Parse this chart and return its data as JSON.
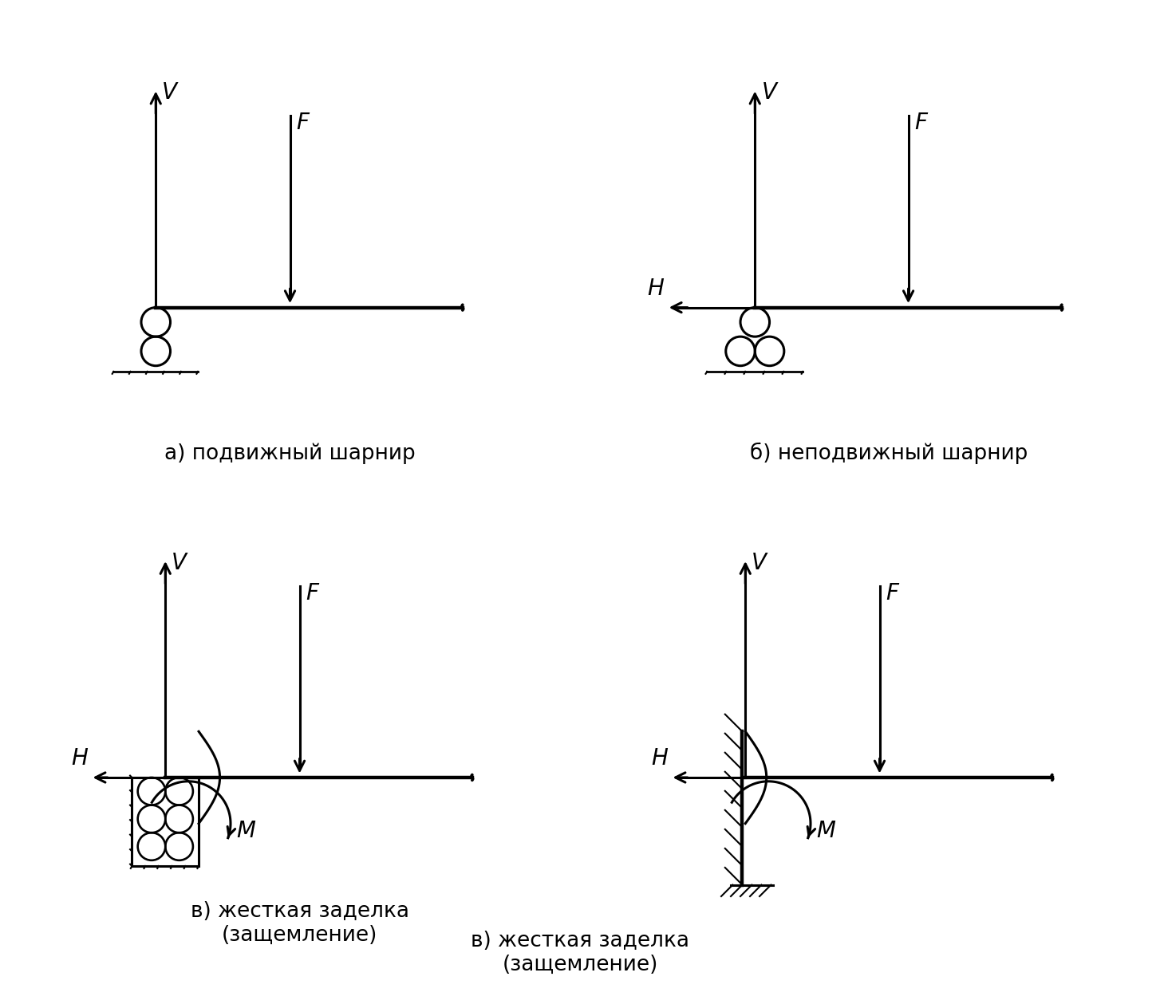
{
  "bg_color": "#ffffff",
  "line_color": "#000000",
  "lw": 2.2,
  "label_a": "а) подвижный шарнир",
  "label_b": "б) неподвижный шарнир",
  "label_c": "в) жесткая заделка\n(защемление)",
  "label_fontsize": 19,
  "italic_fontsize": 20
}
